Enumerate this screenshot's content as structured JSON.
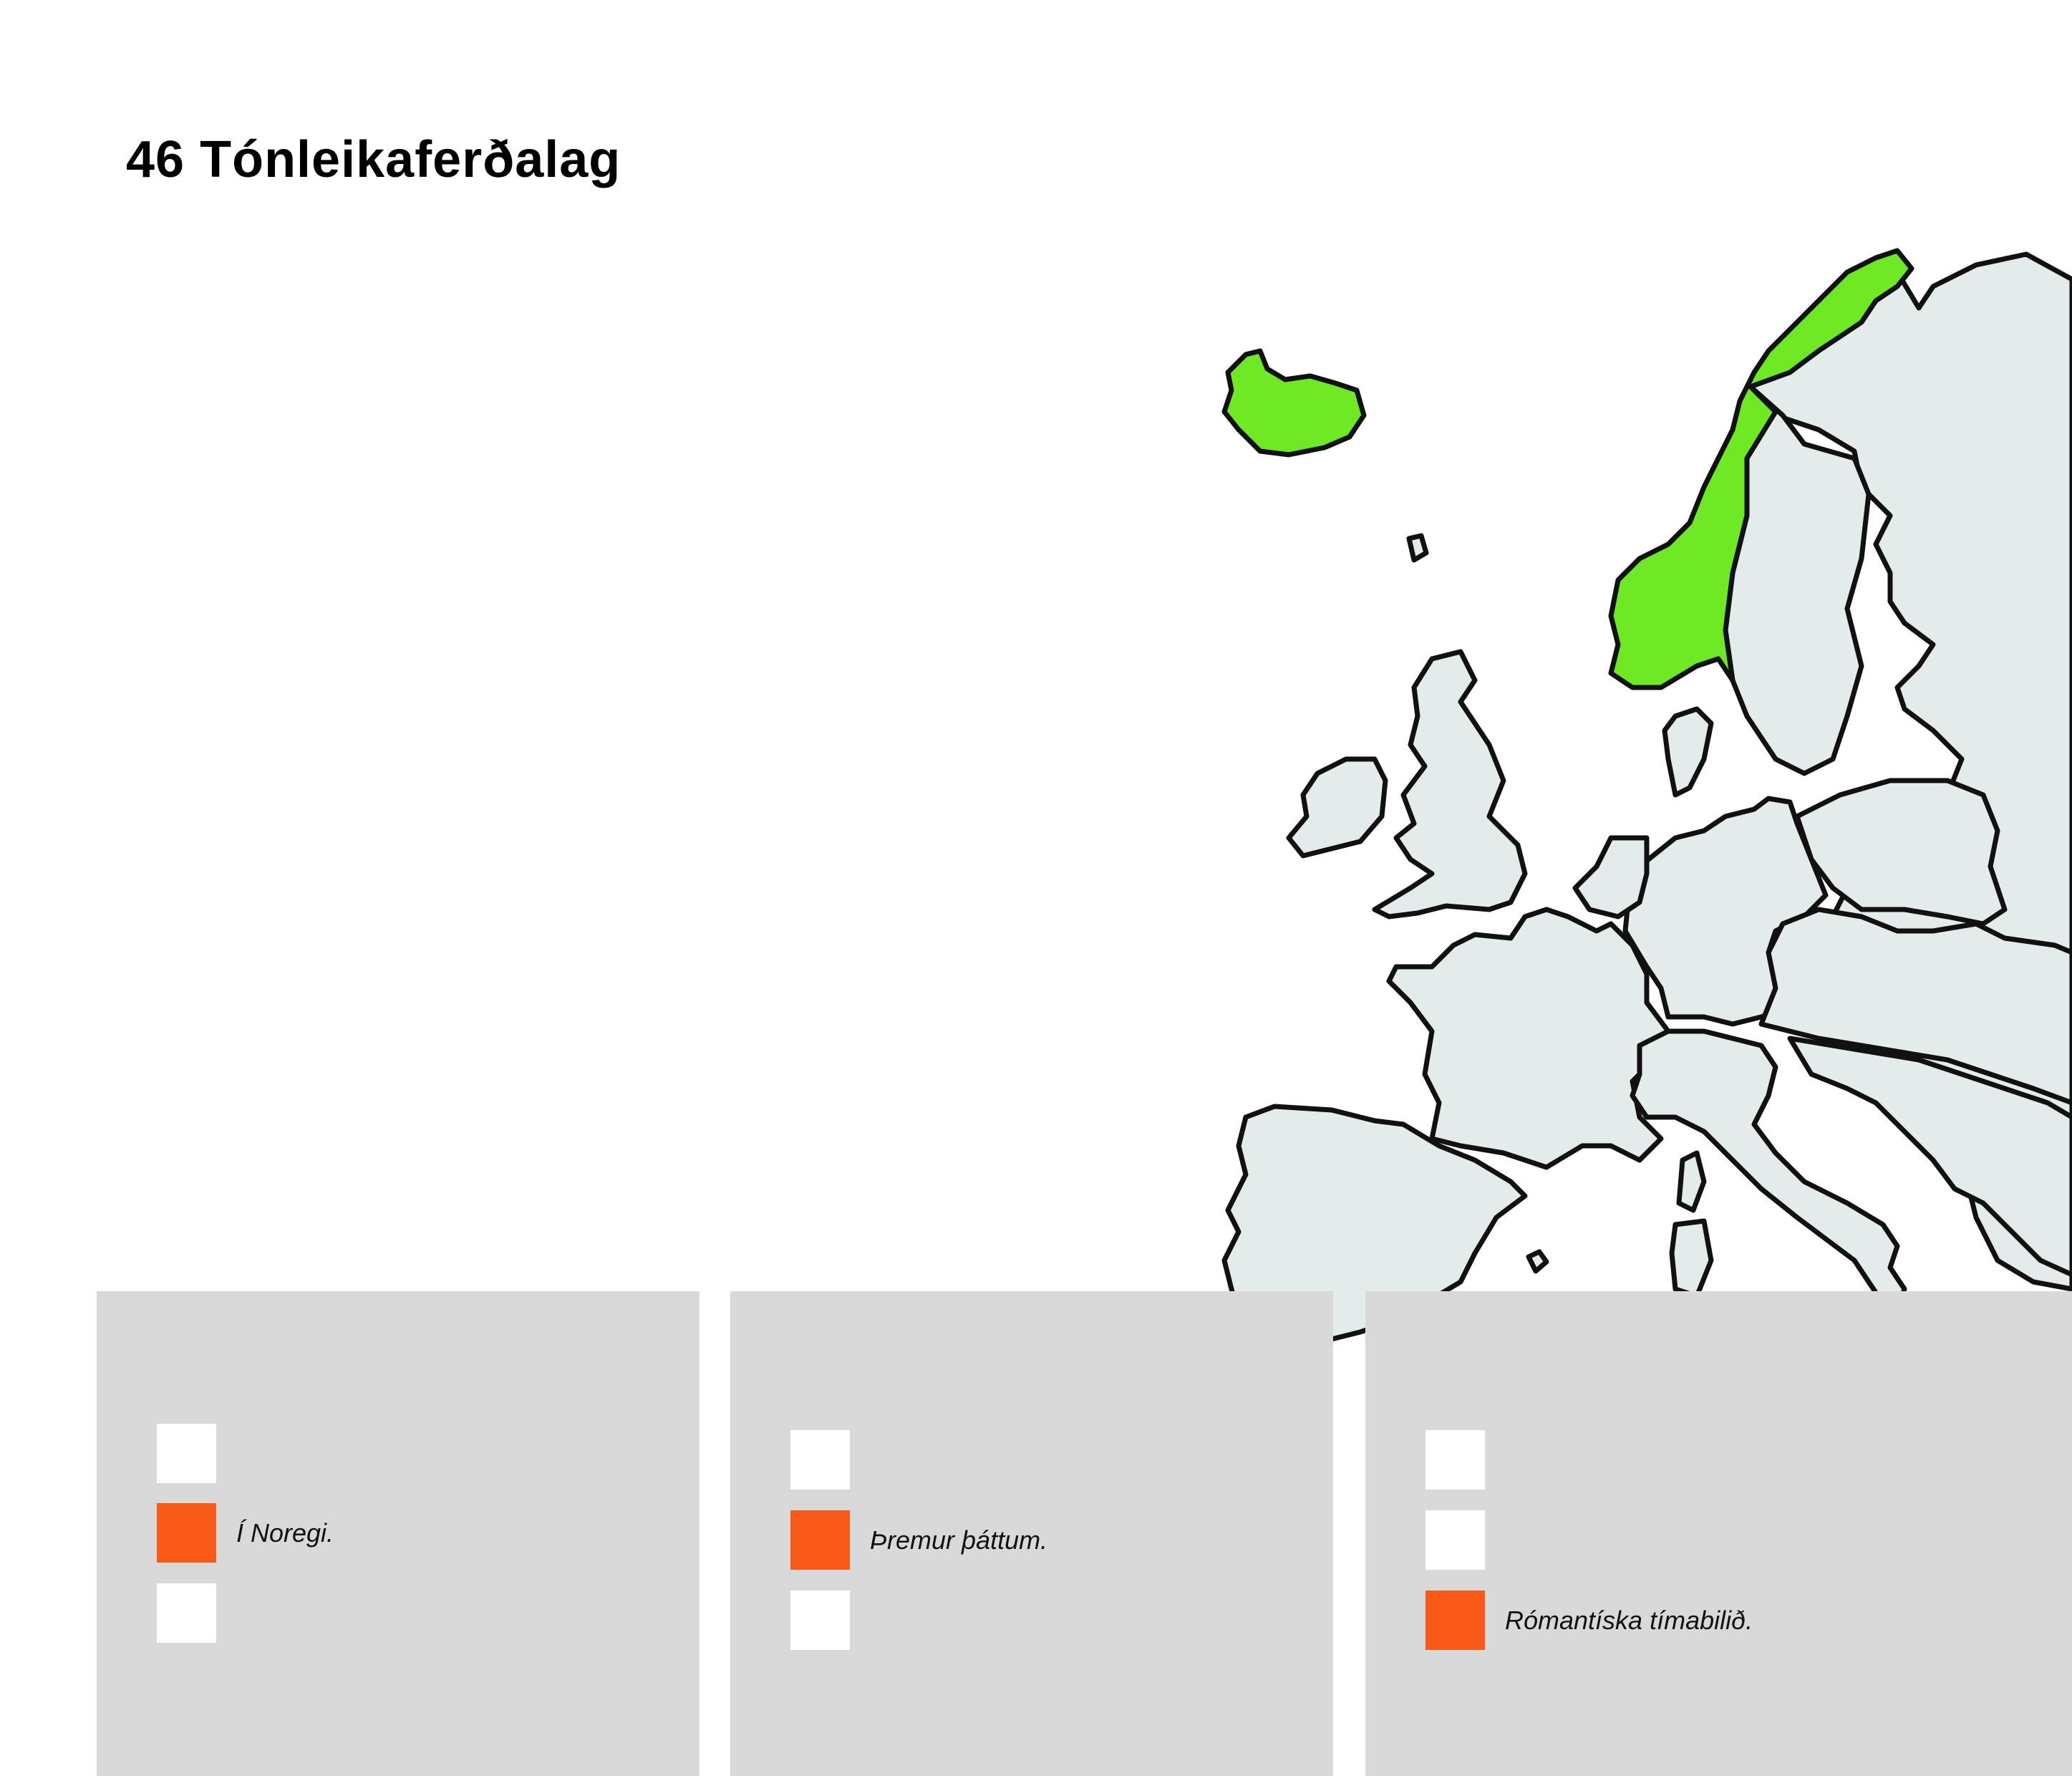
{
  "title": {
    "number": "46",
    "text": "Tónleikaferðalag"
  },
  "colors": {
    "background": "#ffffff",
    "panel": "#d9d9d9",
    "checkbox_empty": "#ffffff",
    "checkbox_selected": "#fa5a17",
    "highlight_country": "#6fe923",
    "land": "#e4eceb",
    "border": "#111111"
  },
  "map": {
    "highlighted_countries": [
      "Iceland",
      "Norway"
    ],
    "icon": "europe-map"
  },
  "questions": [
    {
      "options": [
        {
          "label": "",
          "selected": false
        },
        {
          "label": "Í Noregi.",
          "selected": true
        },
        {
          "label": "",
          "selected": false
        }
      ]
    },
    {
      "options": [
        {
          "label": "",
          "selected": false
        },
        {
          "label": "Þremur þáttum.",
          "selected": true
        },
        {
          "label": "",
          "selected": false
        }
      ]
    },
    {
      "options": [
        {
          "label": "",
          "selected": false
        },
        {
          "label": "",
          "selected": false
        },
        {
          "label": "Rómantíska tímabilið.",
          "selected": true
        }
      ]
    }
  ]
}
